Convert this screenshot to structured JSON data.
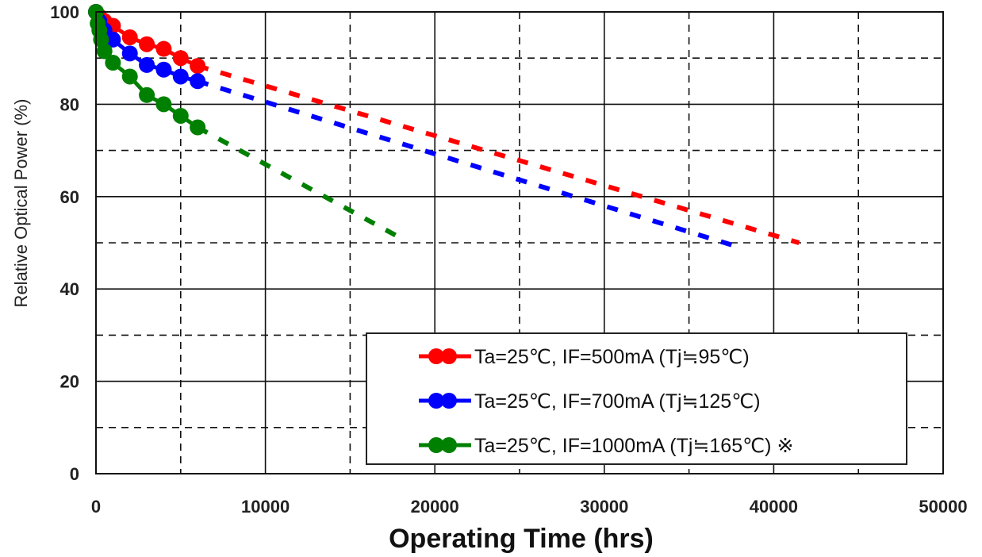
{
  "chart_data": {
    "type": "line",
    "title": "",
    "xlabel": "Operating Time  (hrs)",
    "ylabel": "Relative Optical Power (%)",
    "xlim": [
      0,
      50000
    ],
    "ylim": [
      0,
      100
    ],
    "x_ticks": [
      0,
      10000,
      20000,
      30000,
      40000,
      50000
    ],
    "y_ticks": [
      0,
      20,
      40,
      60,
      80,
      100
    ],
    "x_tick_labels": [
      "0",
      "10000",
      "20000",
      "30000",
      "40000",
      "50000"
    ],
    "y_tick_labels": [
      "0",
      "20",
      "40",
      "60",
      "80",
      "100"
    ],
    "grid": true,
    "legend_position": "bottom-right",
    "series": [
      {
        "name": "Ta=25℃, IF=500mA (Tj≒95℃)",
        "color": "#ff0000",
        "measured": {
          "x": [
            0,
            200,
            500,
            1000,
            2000,
            3000,
            4000,
            5000,
            6000
          ],
          "y": [
            100,
            99,
            98,
            97,
            94.5,
            93,
            92,
            90,
            88.3
          ]
        },
        "extrapolated": {
          "x": [
            6000,
            41500
          ],
          "y": [
            88.3,
            50
          ]
        }
      },
      {
        "name": "Ta=25℃, IF=700mA (Tj≒125℃)",
        "color": "#0000ff",
        "measured": {
          "x": [
            0,
            200,
            500,
            1000,
            2000,
            3000,
            4000,
            5000,
            6000
          ],
          "y": [
            100,
            98,
            96,
            94,
            91,
            88.5,
            87.5,
            86,
            85
          ]
        },
        "extrapolated": {
          "x": [
            6000,
            38000
          ],
          "y": [
            85,
            49
          ]
        }
      },
      {
        "name": "Ta=25℃, IF=1000mA (Tj≒165℃)",
        "note": "※",
        "color": "#008000",
        "measured": {
          "x": [
            0,
            100,
            200,
            300,
            500,
            1000,
            2000,
            3000,
            4000,
            5000,
            6000
          ],
          "y": [
            100,
            97.5,
            96,
            94,
            91.5,
            89,
            86,
            82,
            80,
            77.5,
            75
          ]
        },
        "extrapolated": {
          "x": [
            6000,
            18000
          ],
          "y": [
            75,
            51
          ]
        }
      }
    ]
  }
}
